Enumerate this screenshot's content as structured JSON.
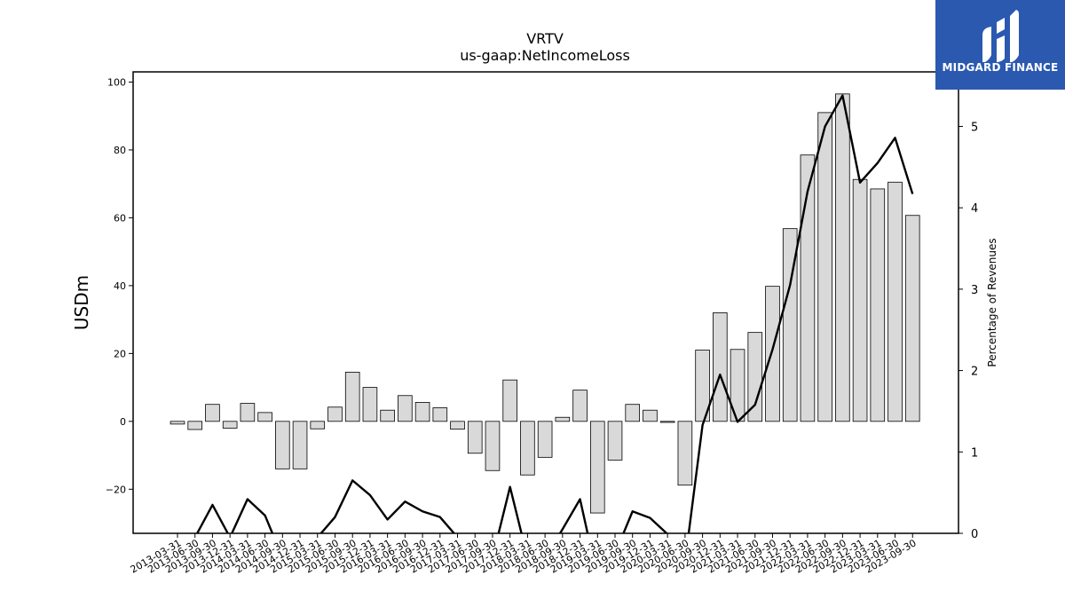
{
  "logo": {
    "text": "MIDGARD FINANCE",
    "bg_color": "#2b59b0"
  },
  "chart_data": {
    "type": "bar",
    "title": "VRTV",
    "subtitle": "us-gaap:NetIncomeLoss",
    "ylabel": "USDm",
    "y2label": "Percentage of Revenues",
    "ylim": [
      -33,
      103
    ],
    "y2lim": [
      0,
      5.67
    ],
    "yticks": [
      -20,
      0,
      20,
      40,
      60,
      80,
      100
    ],
    "y2ticks": [
      0,
      1,
      2,
      3,
      4,
      5
    ],
    "yticklabels": [
      "−20",
      "0",
      "20",
      "40",
      "60",
      "80",
      "100"
    ],
    "y2ticklabels": [
      "0",
      "1",
      "2",
      "3",
      "4",
      "5"
    ],
    "categories": [
      "2013-03-31",
      "2013-06-30",
      "2013-09-30",
      "2013-12-31",
      "2014-03-31",
      "2014-06-30",
      "2014-09-30",
      "2014-12-31",
      "2015-03-31",
      "2015-06-30",
      "2015-09-30",
      "2015-12-31",
      "2016-03-31",
      "2016-06-30",
      "2016-09-30",
      "2016-12-31",
      "2017-03-31",
      "2017-06-30",
      "2017-09-30",
      "2017-12-31",
      "2018-03-31",
      "2018-06-30",
      "2018-09-30",
      "2018-12-31",
      "2019-03-31",
      "2019-06-30",
      "2019-09-30",
      "2019-12-31",
      "2020-03-31",
      "2020-06-30",
      "2020-09-30",
      "2020-12-31",
      "2021-03-31",
      "2021-06-30",
      "2021-09-30",
      "2021-12-31",
      "2022-03-31",
      "2022-06-30",
      "2022-09-30",
      "2022-12-31",
      "2023-03-31",
      "2023-06-30",
      "2023-09-30"
    ],
    "series": [
      {
        "name": "",
        "type": "bar",
        "axis": "left",
        "values": [
          -0.8,
          -2.4,
          5.0,
          -2.0,
          5.3,
          2.6,
          -14.0,
          -14.0,
          -2.2,
          4.2,
          14.5,
          10.0,
          3.3,
          7.6,
          5.6,
          4.0,
          -2.3,
          -9.4,
          -14.5,
          12.2,
          -15.8,
          -10.6,
          1.2,
          9.2,
          -27.0,
          -11.4,
          5.0,
          3.3,
          -0.3,
          -18.8,
          21.0,
          32.0,
          21.2,
          26.2,
          39.8,
          56.8,
          78.5,
          91.0,
          96.5,
          71.3,
          68.5,
          70.5,
          60.7
        ]
      },
      {
        "name": "",
        "type": "line",
        "axis": "right",
        "values": [
          null,
          -0.05,
          0.35,
          -0.05,
          0.42,
          0.22,
          -0.3,
          -0.3,
          -0.05,
          0.2,
          0.65,
          0.47,
          0.17,
          0.39,
          0.27,
          0.2,
          -0.05,
          -0.3,
          -0.3,
          0.57,
          -0.3,
          -0.3,
          0.05,
          0.42,
          -0.55,
          -0.25,
          0.27,
          0.19,
          -0.01,
          -0.35,
          1.33,
          1.95,
          1.37,
          1.58,
          2.26,
          3.05,
          4.2,
          5.0,
          5.38,
          4.31,
          4.55,
          4.86,
          4.17
        ]
      }
    ],
    "colors": {
      "bar_fill": "#d9d9d9",
      "bar_stroke": "#000000",
      "line": "#000000"
    },
    "grid": false,
    "legend": "none"
  }
}
